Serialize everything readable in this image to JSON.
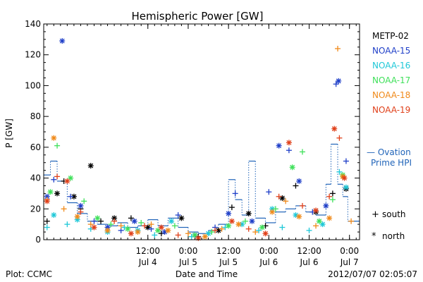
{
  "chart_data": {
    "type": "scatter",
    "title": "Hemispheric Power [GW]",
    "xlabel": "Date and Time",
    "ylabel": "P [GW]",
    "ylim": [
      0,
      140
    ],
    "xlim": [
      "2012-07-03T05:00",
      "2012-07-07T03:00"
    ],
    "y_ticks": [
      0,
      20,
      40,
      60,
      80,
      100,
      120,
      140
    ],
    "x_ticks": [
      {
        "at": "2012-07-04T12:00",
        "line1": "12:00",
        "line2": "Jul 4"
      },
      {
        "at": "2012-07-05T00:00",
        "line1": "0:00",
        "line2": "Jul 5"
      },
      {
        "at": "2012-07-05T12:00",
        "line1": "12:00",
        "line2": "Jul 5"
      },
      {
        "at": "2012-07-06T00:00",
        "line1": "0:00",
        "line2": "Jul 6"
      },
      {
        "at": "2012-07-06T12:00",
        "line1": "12:00",
        "line2": "Jul 6"
      },
      {
        "at": "2012-07-07T00:00",
        "line1": "0:00",
        "line2": "Jul 7"
      }
    ],
    "legend": {
      "placement": "right"
    },
    "series": [
      {
        "name": "METP-02",
        "color": "#000000",
        "points": [
          [
            "2012-07-03T06:00",
            12
          ],
          [
            "2012-07-03T09:00",
            30
          ],
          [
            "2012-07-03T11:00",
            38
          ],
          [
            "2012-07-03T14:00",
            28
          ],
          [
            "2012-07-03T16:00",
            20
          ],
          [
            "2012-07-03T19:00",
            48
          ],
          [
            "2012-07-03T22:00",
            12
          ],
          [
            "2012-07-04T02:00",
            14
          ],
          [
            "2012-07-04T07:00",
            14
          ],
          [
            "2012-07-04T12:00",
            8
          ],
          [
            "2012-07-04T16:00",
            4
          ],
          [
            "2012-07-04T22:00",
            14
          ],
          [
            "2012-07-05T03:00",
            2
          ],
          [
            "2012-07-05T09:00",
            6
          ],
          [
            "2012-07-05T13:00",
            21
          ],
          [
            "2012-07-05T18:00",
            17
          ],
          [
            "2012-07-05T23:00",
            9
          ],
          [
            "2012-07-06T04:00",
            27
          ],
          [
            "2012-07-06T08:00",
            35
          ],
          [
            "2012-07-06T14:00",
            18
          ],
          [
            "2012-07-06T19:00",
            30
          ],
          [
            "2012-07-06T23:00",
            33
          ]
        ]
      },
      {
        "name": "NOAA-15",
        "color": "#1f3fc8",
        "points": [
          [
            "2012-07-03T06:00",
            28
          ],
          [
            "2012-07-03T08:00",
            39
          ],
          [
            "2012-07-03T10:30",
            129
          ],
          [
            "2012-07-03T13:00",
            28
          ],
          [
            "2012-07-03T16:00",
            22
          ],
          [
            "2012-07-03T20:00",
            12
          ],
          [
            "2012-07-04T00:00",
            8
          ],
          [
            "2012-07-04T04:00",
            6
          ],
          [
            "2012-07-04T08:00",
            12
          ],
          [
            "2012-07-04T13:00",
            7
          ],
          [
            "2012-07-04T17:00",
            5
          ],
          [
            "2012-07-04T21:00",
            16
          ],
          [
            "2012-07-05T02:00",
            3
          ],
          [
            "2012-07-05T08:00",
            8
          ],
          [
            "2012-07-05T12:00",
            17
          ],
          [
            "2012-07-05T14:00",
            30
          ],
          [
            "2012-07-05T19:00",
            12
          ],
          [
            "2012-07-06T00:00",
            31
          ],
          [
            "2012-07-06T03:00",
            61
          ],
          [
            "2012-07-06T06:00",
            58
          ],
          [
            "2012-07-06T09:00",
            38
          ],
          [
            "2012-07-06T13:00",
            18
          ],
          [
            "2012-07-06T17:00",
            22
          ],
          [
            "2012-07-06T20:00",
            101
          ],
          [
            "2012-07-06T20:45",
            103
          ],
          [
            "2012-07-06T23:00",
            51
          ]
        ]
      },
      {
        "name": "NOAA-16",
        "color": "#1fc8d8",
        "points": [
          [
            "2012-07-03T06:00",
            8
          ],
          [
            "2012-07-03T08:00",
            16
          ],
          [
            "2012-07-03T12:00",
            10
          ],
          [
            "2012-07-03T15:00",
            13
          ],
          [
            "2012-07-03T19:00",
            7
          ],
          [
            "2012-07-04T00:00",
            5
          ],
          [
            "2012-07-04T05:00",
            8
          ],
          [
            "2012-07-04T09:00",
            6
          ],
          [
            "2012-07-04T14:00",
            3
          ],
          [
            "2012-07-04T19:00",
            12
          ],
          [
            "2012-07-05T01:00",
            2
          ],
          [
            "2012-07-05T06:00",
            4
          ],
          [
            "2012-07-05T11:00",
            8
          ],
          [
            "2012-07-05T16:00",
            10
          ],
          [
            "2012-07-05T21:00",
            6
          ],
          [
            "2012-07-06T01:00",
            20
          ],
          [
            "2012-07-06T04:00",
            8
          ],
          [
            "2012-07-06T08:00",
            16
          ],
          [
            "2012-07-06T12:00",
            6
          ],
          [
            "2012-07-06T16:00",
            10
          ],
          [
            "2012-07-06T21:00",
            44
          ],
          [
            "2012-07-06T23:00",
            34
          ]
        ]
      },
      {
        "name": "NOAA-17",
        "color": "#3fe05a",
        "points": [
          [
            "2012-07-03T07:00",
            31
          ],
          [
            "2012-07-03T09:00",
            61
          ],
          [
            "2012-07-03T13:00",
            40
          ],
          [
            "2012-07-03T17:00",
            25
          ],
          [
            "2012-07-03T21:00",
            14
          ],
          [
            "2012-07-04T01:00",
            10
          ],
          [
            "2012-07-04T06:00",
            7
          ],
          [
            "2012-07-04T10:00",
            11
          ],
          [
            "2012-07-04T15:00",
            6
          ],
          [
            "2012-07-04T20:00",
            9
          ],
          [
            "2012-07-05T02:00",
            3
          ],
          [
            "2012-07-05T07:00",
            5
          ],
          [
            "2012-07-05T12:00",
            9
          ],
          [
            "2012-07-05T17:00",
            12
          ],
          [
            "2012-07-05T22:00",
            8
          ],
          [
            "2012-07-06T02:00",
            20
          ],
          [
            "2012-07-06T07:00",
            47
          ],
          [
            "2012-07-06T10:00",
            57
          ],
          [
            "2012-07-06T15:00",
            12
          ],
          [
            "2012-07-06T19:00",
            26
          ],
          [
            "2012-07-06T22:00",
            42
          ]
        ]
      },
      {
        "name": "NOAA-18",
        "color": "#f08a1a",
        "points": [
          [
            "2012-07-03T06:00",
            26
          ],
          [
            "2012-07-03T08:00",
            66
          ],
          [
            "2012-07-03T11:00",
            20
          ],
          [
            "2012-07-03T15:00",
            15
          ],
          [
            "2012-07-03T19:00",
            10
          ],
          [
            "2012-07-04T00:00",
            6
          ],
          [
            "2012-07-04T04:00",
            9
          ],
          [
            "2012-07-04T09:00",
            5
          ],
          [
            "2012-07-04T13:00",
            10
          ],
          [
            "2012-07-04T18:00",
            6
          ],
          [
            "2012-07-05T00:00",
            4
          ],
          [
            "2012-07-05T05:00",
            2
          ],
          [
            "2012-07-05T10:00",
            7
          ],
          [
            "2012-07-05T15:00",
            10
          ],
          [
            "2012-07-05T20:00",
            5
          ],
          [
            "2012-07-06T01:00",
            18
          ],
          [
            "2012-07-06T05:00",
            25
          ],
          [
            "2012-07-06T09:00",
            15
          ],
          [
            "2012-07-06T14:00",
            9
          ],
          [
            "2012-07-06T18:00",
            14
          ],
          [
            "2012-07-06T20:30",
            124
          ],
          [
            "2012-07-06T22:00",
            41
          ],
          [
            "2012-07-07T00:30",
            12
          ]
        ]
      },
      {
        "name": "NOAA-19",
        "color": "#e0401a",
        "points": [
          [
            "2012-07-03T06:00",
            25
          ],
          [
            "2012-07-03T09:00",
            41
          ],
          [
            "2012-07-03T12:00",
            38
          ],
          [
            "2012-07-03T16:00",
            18
          ],
          [
            "2012-07-03T20:00",
            8
          ],
          [
            "2012-07-04T02:00",
            12
          ],
          [
            "2012-07-04T07:00",
            4
          ],
          [
            "2012-07-04T11:00",
            9
          ],
          [
            "2012-07-04T16:00",
            8
          ],
          [
            "2012-07-04T21:00",
            3
          ],
          [
            "2012-07-05T03:00",
            1
          ],
          [
            "2012-07-05T08:00",
            6
          ],
          [
            "2012-07-05T13:00",
            12
          ],
          [
            "2012-07-05T18:00",
            7
          ],
          [
            "2012-07-05T23:00",
            4
          ],
          [
            "2012-07-06T03:00",
            28
          ],
          [
            "2012-07-06T06:00",
            63
          ],
          [
            "2012-07-06T10:00",
            22
          ],
          [
            "2012-07-06T14:00",
            19
          ],
          [
            "2012-07-06T18:00",
            28
          ],
          [
            "2012-07-06T19:30",
            72
          ],
          [
            "2012-07-06T21:00",
            66
          ],
          [
            "2012-07-06T22:30",
            40
          ]
        ]
      }
    ],
    "ovation": {
      "label_line1": "— Ovation",
      "label_line2": "Prime HPI",
      "color": "#1f63b8",
      "steps": [
        [
          "2012-07-03T05:00",
          42
        ],
        [
          "2012-07-03T07:00",
          51
        ],
        [
          "2012-07-03T09:00",
          38
        ],
        [
          "2012-07-03T12:00",
          24
        ],
        [
          "2012-07-03T15:00",
          17
        ],
        [
          "2012-07-03T18:00",
          12
        ],
        [
          "2012-07-03T21:00",
          10
        ],
        [
          "2012-07-04T00:00",
          9
        ],
        [
          "2012-07-04T03:00",
          11
        ],
        [
          "2012-07-04T06:00",
          8
        ],
        [
          "2012-07-04T09:00",
          9
        ],
        [
          "2012-07-04T12:00",
          13
        ],
        [
          "2012-07-04T15:00",
          9
        ],
        [
          "2012-07-04T18:00",
          14
        ],
        [
          "2012-07-04T21:00",
          8
        ],
        [
          "2012-07-05T00:00",
          5
        ],
        [
          "2012-07-05T03:00",
          4
        ],
        [
          "2012-07-05T06:00",
          6
        ],
        [
          "2012-07-05T09:00",
          10
        ],
        [
          "2012-07-05T12:00",
          39
        ],
        [
          "2012-07-05T14:00",
          26
        ],
        [
          "2012-07-05T16:00",
          16
        ],
        [
          "2012-07-05T18:00",
          51
        ],
        [
          "2012-07-05T20:00",
          14
        ],
        [
          "2012-07-05T23:00",
          11
        ],
        [
          "2012-07-06T02:00",
          18
        ],
        [
          "2012-07-06T05:00",
          20
        ],
        [
          "2012-07-06T08:00",
          22
        ],
        [
          "2012-07-06T11:00",
          18
        ],
        [
          "2012-07-06T14:00",
          16
        ],
        [
          "2012-07-06T17:00",
          36
        ],
        [
          "2012-07-06T18:30",
          62
        ],
        [
          "2012-07-06T20:30",
          36
        ],
        [
          "2012-07-06T22:00",
          28
        ],
        [
          "2012-07-06T23:30",
          12
        ],
        [
          "2012-07-07T03:00",
          12
        ]
      ]
    },
    "symbols": [
      {
        "glyph": "+",
        "label": "south"
      },
      {
        "glyph": "*",
        "label": "north"
      }
    ]
  },
  "footer": {
    "plot_credit": "Plot: CCMC",
    "timestamp": "2012/07/07 02:05:07"
  }
}
